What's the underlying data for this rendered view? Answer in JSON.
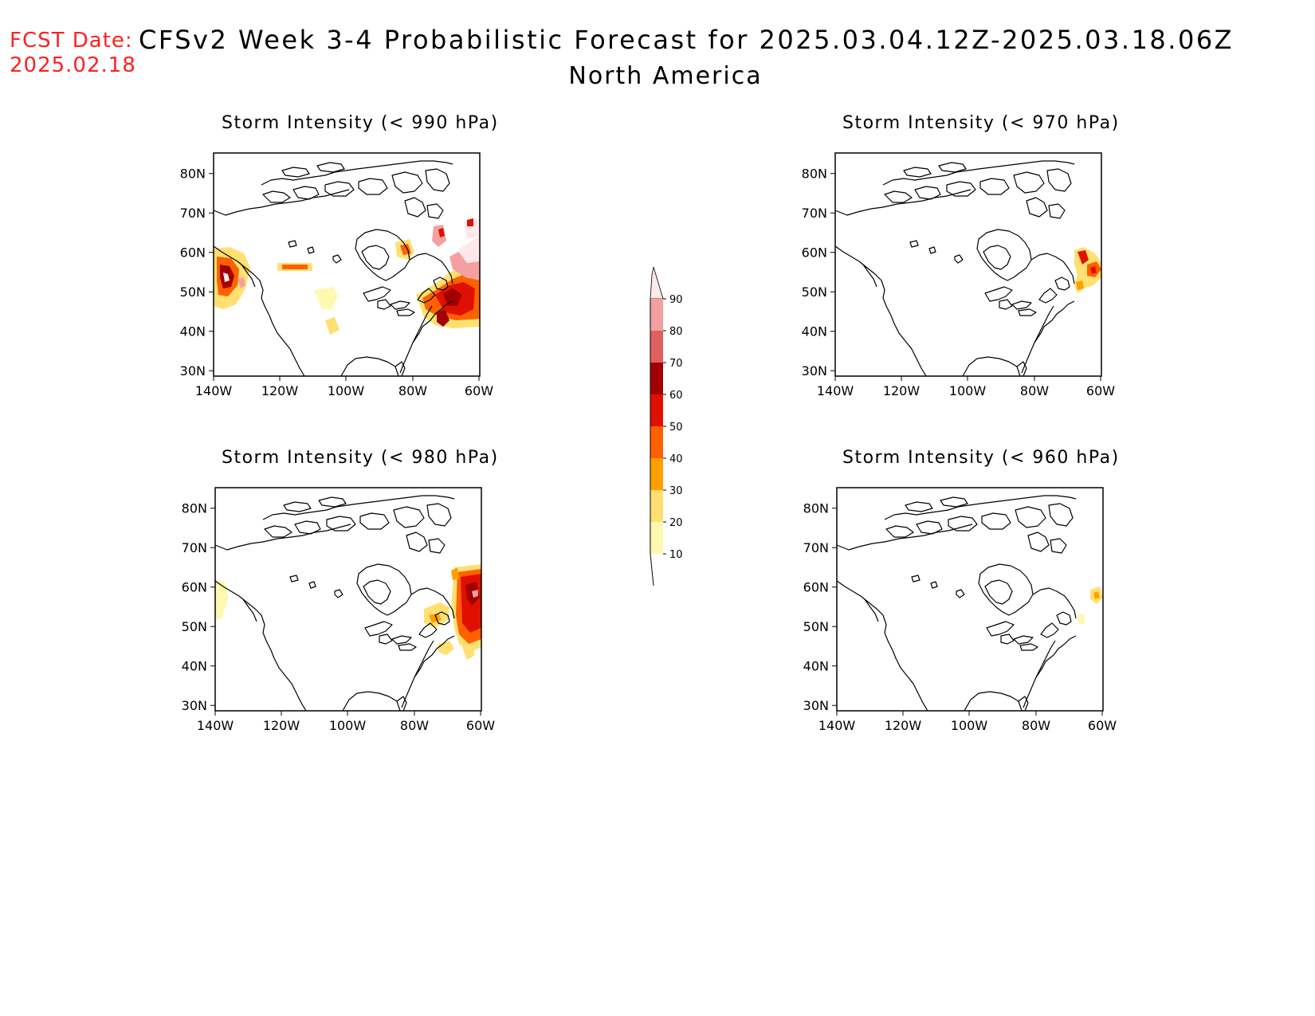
{
  "header": {
    "fcst_label": "FCST Date:",
    "fcst_date": "2025.02.18",
    "title": "CFSv2 Week 3-4 Probabilistic Forecast for 2025.03.04.12Z-2025.03.18.06Z",
    "subtitle": "North America"
  },
  "axes": {
    "lat_ticks": [
      "80N",
      "70N",
      "60N",
      "50N",
      "40N",
      "30N"
    ],
    "lon_ticks": [
      "140W",
      "120W",
      "100W",
      "80W",
      "60W"
    ]
  },
  "panels": [
    {
      "id": "990",
      "title": "Storm Intensity (< 990 hPa)"
    },
    {
      "id": "970",
      "title": "Storm Intensity (< 970 hPa)"
    },
    {
      "id": "980",
      "title": "Storm Intensity (< 980 hPa)"
    },
    {
      "id": "960",
      "title": "Storm Intensity (< 960 hPa)"
    }
  ],
  "colorbar": {
    "labels": [
      "90",
      "80",
      "70",
      "60",
      "50",
      "40",
      "30",
      "20",
      "10"
    ],
    "colors": {
      "10-20": "#fff8b0",
      "20-30": "#ffe070",
      "30-40": "#ffa000",
      "40-50": "#ff6000",
      "50-60": "#e01000",
      "60-70": "#a00000",
      "70-80": "#e06060",
      "80-90": "#f5a0a0",
      "90-100": "#ffe8ea"
    }
  }
}
